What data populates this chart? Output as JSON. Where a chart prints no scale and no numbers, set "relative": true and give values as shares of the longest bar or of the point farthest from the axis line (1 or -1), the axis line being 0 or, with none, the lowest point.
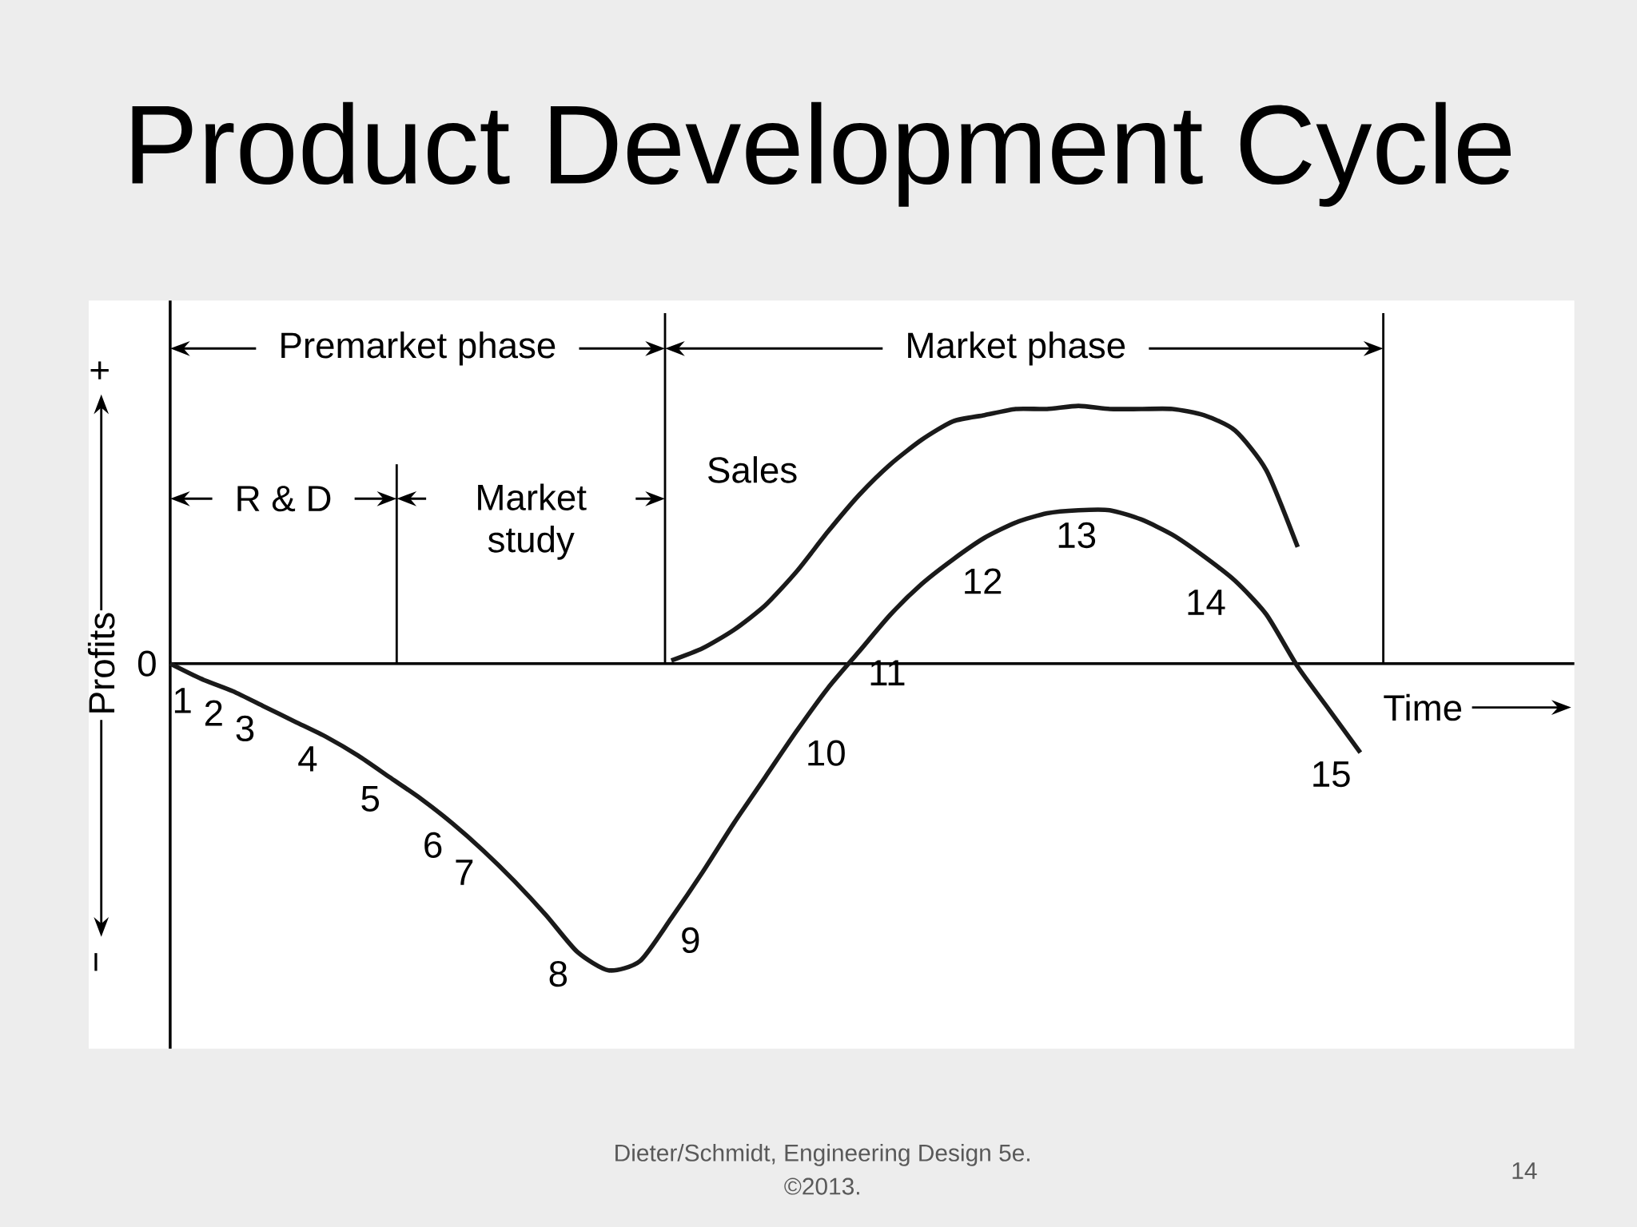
{
  "chart_data": {
    "type": "line",
    "title": "Product Development Cycle",
    "xlabel": "Time",
    "ylabel": "Profits",
    "relative": true,
    "categories": [
      null,
      null,
      null,
      null,
      null,
      null,
      null,
      null,
      null,
      null,
      null,
      null,
      null,
      null,
      null,
      null,
      null,
      null,
      null,
      null,
      null,
      null,
      null,
      null,
      null,
      null,
      null,
      null,
      null,
      null,
      null,
      null,
      null,
      null,
      null,
      null,
      null,
      null,
      null
    ],
    "series": [
      {
        "color": "#1a1a1a",
        "values": [
          0,
          -0.05,
          -0.09,
          -0.14,
          -0.19,
          -0.24,
          -0.3,
          -0.37,
          -0.44,
          -0.52,
          -0.61,
          -0.71,
          -0.82,
          -0.94,
          -1.0,
          -0.97,
          -0.83,
          -0.68,
          -0.52,
          -0.37,
          -0.22,
          -0.08,
          0.04,
          0.16,
          0.26,
          0.34,
          0.41,
          0.46,
          0.49,
          0.5,
          0.5,
          0.47,
          0.42,
          0.35,
          0.27,
          0.16,
          -0.01,
          -0.15,
          -0.29
        ],
        "line_style": "solid"
      },
      {
        "name": "Sales",
        "color": "#1a1a1a",
        "values": [
          null,
          null,
          null,
          null,
          null,
          null,
          null,
          null,
          null,
          null,
          null,
          null,
          null,
          null,
          null,
          null,
          0.01,
          0.05,
          0.11,
          0.19,
          0.3,
          0.43,
          0.55,
          0.65,
          0.73,
          0.79,
          0.81,
          0.83,
          0.83,
          0.84,
          0.83,
          0.83,
          0.83,
          0.81,
          0.76,
          0.63,
          0.38,
          null,
          null
        ]
      }
    ],
    "annotations": [
      "Premarket phase",
      "Market phase",
      "R & D",
      "Market study",
      "0",
      "+",
      "−",
      "Dieter/Schmidt, Engineering Design 5e.",
      "©2013.",
      "14",
      "1",
      "2",
      "3",
      "4",
      "5",
      "6",
      "7",
      "8",
      "9",
      "10",
      "11",
      "12",
      "13",
      "14",
      "15"
    ]
  }
}
